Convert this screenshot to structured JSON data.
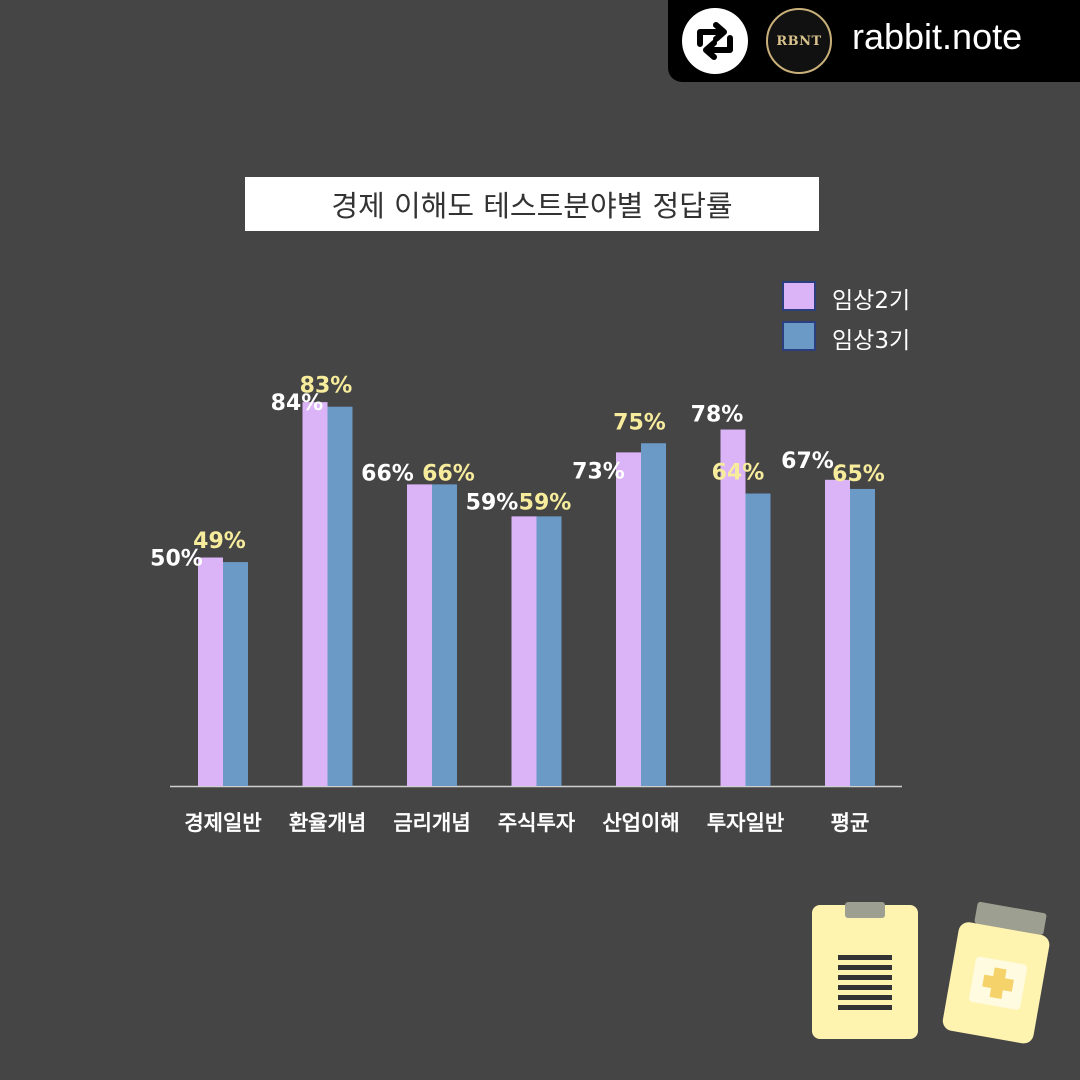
{
  "header": {
    "username": "rabbit.note",
    "avatar_text": "RBNT",
    "repost_icon": "repost-icon"
  },
  "colors": {
    "background": "#464546",
    "series1": "#dbb4f8",
    "series2": "#6b9ac6",
    "label_series1": "#ffffff",
    "label_series2": "#f6ec9c"
  },
  "chart_data": {
    "type": "bar",
    "title": "경제 이해도 테스트분야별 정답률",
    "categories": [
      "경제일반",
      "환율개념",
      "금리개념",
      "주식투자",
      "산업이해",
      "투자일반",
      "평균"
    ],
    "series": [
      {
        "name": "임상2기",
        "values": [
          50,
          84,
          66,
          59,
          73,
          78,
          67
        ],
        "labels": [
          "50%",
          "84%",
          "66%",
          "59%",
          "73%",
          "78%",
          "67%"
        ]
      },
      {
        "name": "임상3기",
        "values": [
          49,
          83,
          66,
          59,
          75,
          64,
          65
        ],
        "labels": [
          "49%",
          "83%",
          "66%",
          "59%",
          "75%",
          "64%",
          "65%"
        ]
      }
    ],
    "ylim": [
      0,
      100
    ],
    "grid": false,
    "legend": "top-right"
  },
  "decorations": [
    "clipboard-icon",
    "medicine-bottle-icon"
  ]
}
